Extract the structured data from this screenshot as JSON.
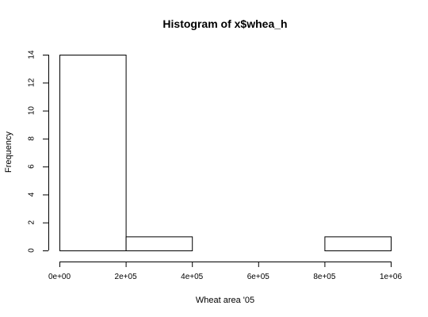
{
  "chart_data": {
    "type": "bar",
    "title": "Histogram of x$whea_h",
    "xlabel": "Wheat area '05",
    "ylabel": "Frequency",
    "bins": [
      {
        "from": 0,
        "to": 200000,
        "count": 14
      },
      {
        "from": 200000,
        "to": 400000,
        "count": 1
      },
      {
        "from": 400000,
        "to": 600000,
        "count": 0
      },
      {
        "from": 600000,
        "to": 800000,
        "count": 0
      },
      {
        "from": 800000,
        "to": 1000000,
        "count": 1
      }
    ],
    "xlim": [
      0,
      1000000
    ],
    "ylim": [
      0,
      14
    ],
    "x_ticks": [
      0,
      200000,
      400000,
      600000,
      800000,
      1000000
    ],
    "x_tick_labels": [
      "0e+00",
      "2e+05",
      "4e+05",
      "6e+05",
      "8e+05",
      "1e+06"
    ],
    "y_ticks": [
      0,
      2,
      4,
      6,
      8,
      10,
      12,
      14
    ],
    "y_tick_labels": [
      "0",
      "2",
      "4",
      "6",
      "8",
      "10",
      "12",
      "14"
    ],
    "grid": false,
    "bar_fill": "#ffffff",
    "bar_stroke": "#000000"
  }
}
